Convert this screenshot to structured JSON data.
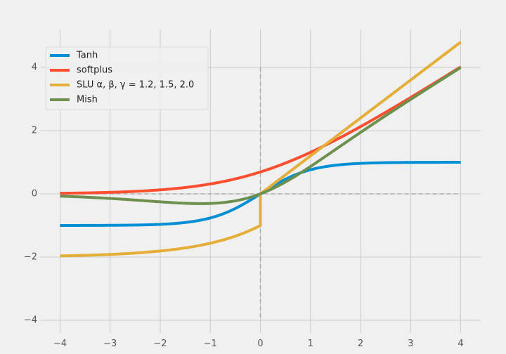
{
  "chart_data": {
    "type": "line",
    "title": "",
    "xlabel": "",
    "ylabel": "",
    "xlim": [
      -4.4,
      4.4
    ],
    "ylim": [
      -4.4,
      5.2
    ],
    "xticks": [
      -4,
      -3,
      -2,
      -1,
      0,
      1,
      2,
      3,
      4
    ],
    "yticks": [
      -4,
      -2,
      0,
      2,
      4
    ],
    "grid": true,
    "legend_position": "top-left",
    "style": "fivethirtyeight",
    "reference_lines": {
      "x": 0,
      "y": 0,
      "style": "dashed",
      "color": "#aaaaaa"
    },
    "x_range": [
      -4,
      4
    ],
    "series": [
      {
        "name": "Tanh",
        "color": "#008fd5",
        "function": "tanh"
      },
      {
        "name": "softplus",
        "color": "#fc4f30",
        "function": "softplus"
      },
      {
        "name": "SLU α, β, γ = 1.2, 1.5, 2.0",
        "color": "#e5ae38",
        "function": "slu",
        "params": {
          "alpha": 1.2,
          "beta": 1.5,
          "gamma": 2.0
        }
      },
      {
        "name": "Mish",
        "color": "#6d904f",
        "function": "mish"
      }
    ]
  }
}
